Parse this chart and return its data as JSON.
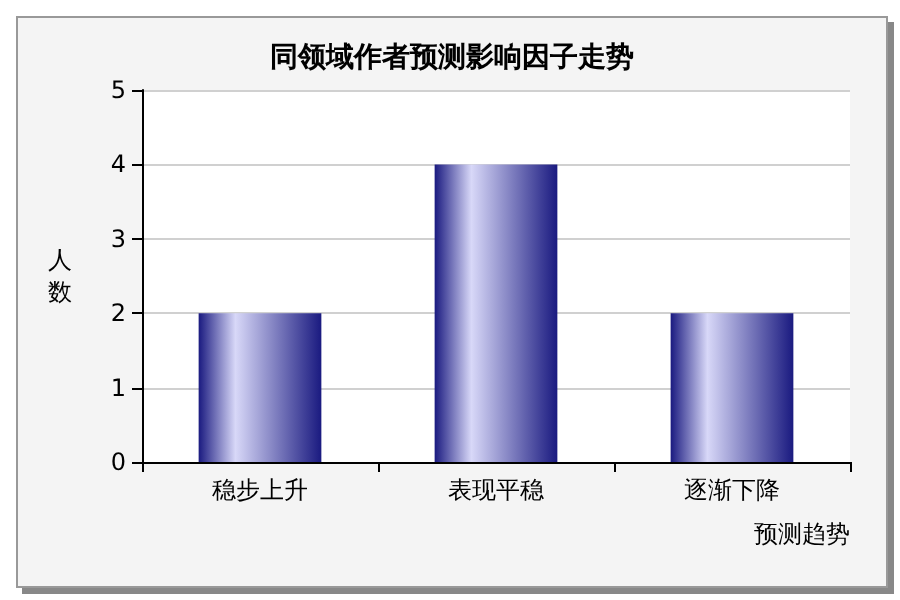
{
  "chart_data": {
    "type": "bar",
    "title": "同领域作者预测影响因子走势",
    "xlabel": "预测趋势",
    "ylabel": "人数",
    "categories": [
      "稳步上升",
      "表现平稳",
      "逐渐下降"
    ],
    "values": [
      2,
      4,
      2
    ],
    "color": "#1a1a80",
    "ylim": [
      0,
      5
    ],
    "yticks": [
      0,
      1,
      2,
      3,
      4,
      5
    ],
    "grid": "y"
  }
}
